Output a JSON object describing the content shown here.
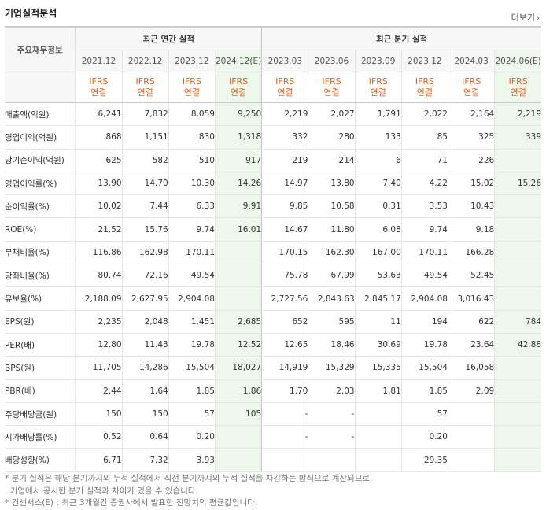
{
  "title": "기업실적분석",
  "more_label": "더보기",
  "stub_label": "주요재무정보",
  "annual_group": "최근 연간 실적",
  "quarter_group": "최근 분기 실적",
  "ifrs_line1": "IFRS",
  "ifrs_line2": "연결",
  "periods": [
    "2021.12",
    "2022.12",
    "2023.12",
    "2024.12(E)",
    "2023.03",
    "2023.06",
    "2023.09",
    "2023.12",
    "2024.03",
    "2024.06(E)"
  ],
  "rows": [
    {
      "label": "매출액(억원)",
      "values": [
        "6,241",
        "7,832",
        "8,059",
        "9,250",
        "2,219",
        "2,027",
        "1,791",
        "2,022",
        "2,164",
        "2,219"
      ]
    },
    {
      "label": "영업이익(억원)",
      "values": [
        "868",
        "1,151",
        "830",
        "1,318",
        "332",
        "280",
        "133",
        "85",
        "325",
        "339"
      ]
    },
    {
      "label": "당기순이익(억원)",
      "values": [
        "625",
        "582",
        "510",
        "917",
        "219",
        "214",
        "6",
        "71",
        "226",
        ""
      ]
    },
    {
      "label": "영업이익률(%)",
      "values": [
        "13.90",
        "14.70",
        "10.30",
        "14.26",
        "14.97",
        "13.80",
        "7.40",
        "4.22",
        "15.02",
        "15.26"
      ]
    },
    {
      "label": "순이익률(%)",
      "values": [
        "10.02",
        "7.44",
        "6.33",
        "9.91",
        "9.85",
        "10.58",
        "0.31",
        "3.53",
        "10.43",
        ""
      ]
    },
    {
      "label": "ROE(%)",
      "values": [
        "21.52",
        "15.76",
        "9.74",
        "16.01",
        "14.67",
        "11.80",
        "6.08",
        "9.74",
        "9.18",
        ""
      ]
    },
    {
      "label": "부채비율(%)",
      "values": [
        "116.86",
        "162.98",
        "170.11",
        "",
        "170.15",
        "162.30",
        "167.00",
        "170.11",
        "166.28",
        ""
      ]
    },
    {
      "label": "당좌비율(%)",
      "values": [
        "80.74",
        "72.16",
        "49.54",
        "",
        "75.78",
        "67.99",
        "53.63",
        "49.54",
        "52.45",
        ""
      ]
    },
    {
      "label": "유보율(%)",
      "values": [
        "2,188.09",
        "2,627.95",
        "2,904.08",
        "",
        "2,727.56",
        "2,843.63",
        "2,845.17",
        "2,904.08",
        "3,016.43",
        ""
      ]
    },
    {
      "label": "EPS(원)",
      "values": [
        "2,235",
        "2,048",
        "1,451",
        "2,685",
        "652",
        "595",
        "11",
        "194",
        "622",
        "784"
      ]
    },
    {
      "label": "PER(배)",
      "values": [
        "12.80",
        "11.43",
        "19.78",
        "12.52",
        "12.65",
        "18.46",
        "30.69",
        "19.78",
        "23.64",
        "42.88"
      ]
    },
    {
      "label": "BPS(원)",
      "values": [
        "11,705",
        "14,286",
        "15,504",
        "18,027",
        "14,919",
        "15,329",
        "15,335",
        "15,504",
        "16,058",
        ""
      ]
    },
    {
      "label": "PBR(배)",
      "values": [
        "2.44",
        "1.64",
        "1.85",
        "1.86",
        "1.70",
        "2.03",
        "1.81",
        "1.85",
        "2.09",
        ""
      ]
    },
    {
      "label": "주당배당금(원)",
      "values": [
        "150",
        "150",
        "57",
        "105",
        "-",
        "-",
        "",
        "57",
        "",
        ""
      ]
    },
    {
      "label": "시가배당률(%)",
      "values": [
        "0.52",
        "0.64",
        "0.20",
        "",
        "-",
        "-",
        "",
        "0.20",
        "",
        ""
      ]
    },
    {
      "label": "배당성향(%)",
      "values": [
        "6.71",
        "7.32",
        "3.93",
        "",
        "",
        "",
        "",
        "29.35",
        "",
        ""
      ]
    }
  ],
  "notes": [
    "분기 실적은 해당 분기까지의 누적 실적에서 직전 분기까지의 누적 실적을 차감하는 방식으로 계산되므로,",
    "기업에서 공시한 분기 실적과 차이가 있을 수 있습니다.",
    "컨센서스(E) : 최근 3개월간 증권사에서 발표한 전망치의 평균값입니다."
  ]
}
